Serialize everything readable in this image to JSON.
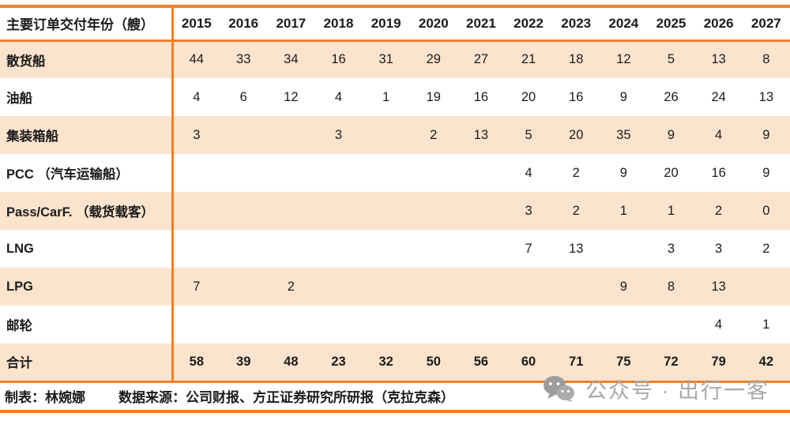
{
  "chart_data": {
    "type": "table",
    "title": "主要订单交付年份（艘）",
    "columns": [
      "2015",
      "2016",
      "2017",
      "2018",
      "2019",
      "2020",
      "2021",
      "2022",
      "2023",
      "2024",
      "2025",
      "2026",
      "2027"
    ],
    "rows": [
      {
        "label": "散货船",
        "values": [
          44,
          33,
          34,
          16,
          31,
          29,
          27,
          21,
          18,
          12,
          5,
          13,
          8
        ]
      },
      {
        "label": "油船",
        "values": [
          4,
          6,
          12,
          4,
          1,
          19,
          16,
          20,
          16,
          9,
          26,
          24,
          13
        ]
      },
      {
        "label": "集装箱船",
        "values": [
          3,
          null,
          null,
          3,
          null,
          2,
          13,
          5,
          20,
          35,
          9,
          4,
          9
        ]
      },
      {
        "label": "PCC （汽车运输船）",
        "values": [
          null,
          null,
          null,
          null,
          null,
          null,
          null,
          4,
          2,
          9,
          20,
          16,
          9
        ]
      },
      {
        "label": "Pass/CarF. （载货载客）",
        "values": [
          null,
          null,
          null,
          null,
          null,
          null,
          null,
          3,
          2,
          1,
          1,
          2,
          0
        ]
      },
      {
        "label": "LNG",
        "values": [
          null,
          null,
          null,
          null,
          null,
          null,
          null,
          7,
          13,
          null,
          3,
          3,
          2
        ]
      },
      {
        "label": "LPG",
        "values": [
          7,
          null,
          2,
          null,
          null,
          null,
          null,
          null,
          null,
          9,
          8,
          13,
          null
        ]
      },
      {
        "label": "邮轮",
        "values": [
          null,
          null,
          null,
          null,
          null,
          null,
          null,
          null,
          null,
          null,
          null,
          4,
          1
        ]
      },
      {
        "label": "合计",
        "values": [
          58,
          39,
          48,
          23,
          32,
          50,
          56,
          60,
          71,
          75,
          72,
          79,
          42
        ]
      }
    ],
    "layout": "header-column-left, zebra-striped rows, total row last"
  },
  "footer": {
    "credit": "制表：林婉娜",
    "source": "数据来源：公司财报、方正证券研究所研报（克拉克森）"
  },
  "watermark": {
    "icon": "wechat-icon",
    "text": "公众号 · 出行一客"
  },
  "colors": {
    "accent_orange": "#ee7f28",
    "row_stripe_peach": "#fce3cd",
    "watermark_gray": "#a9a9a9",
    "text_black": "#1b1b1b"
  }
}
